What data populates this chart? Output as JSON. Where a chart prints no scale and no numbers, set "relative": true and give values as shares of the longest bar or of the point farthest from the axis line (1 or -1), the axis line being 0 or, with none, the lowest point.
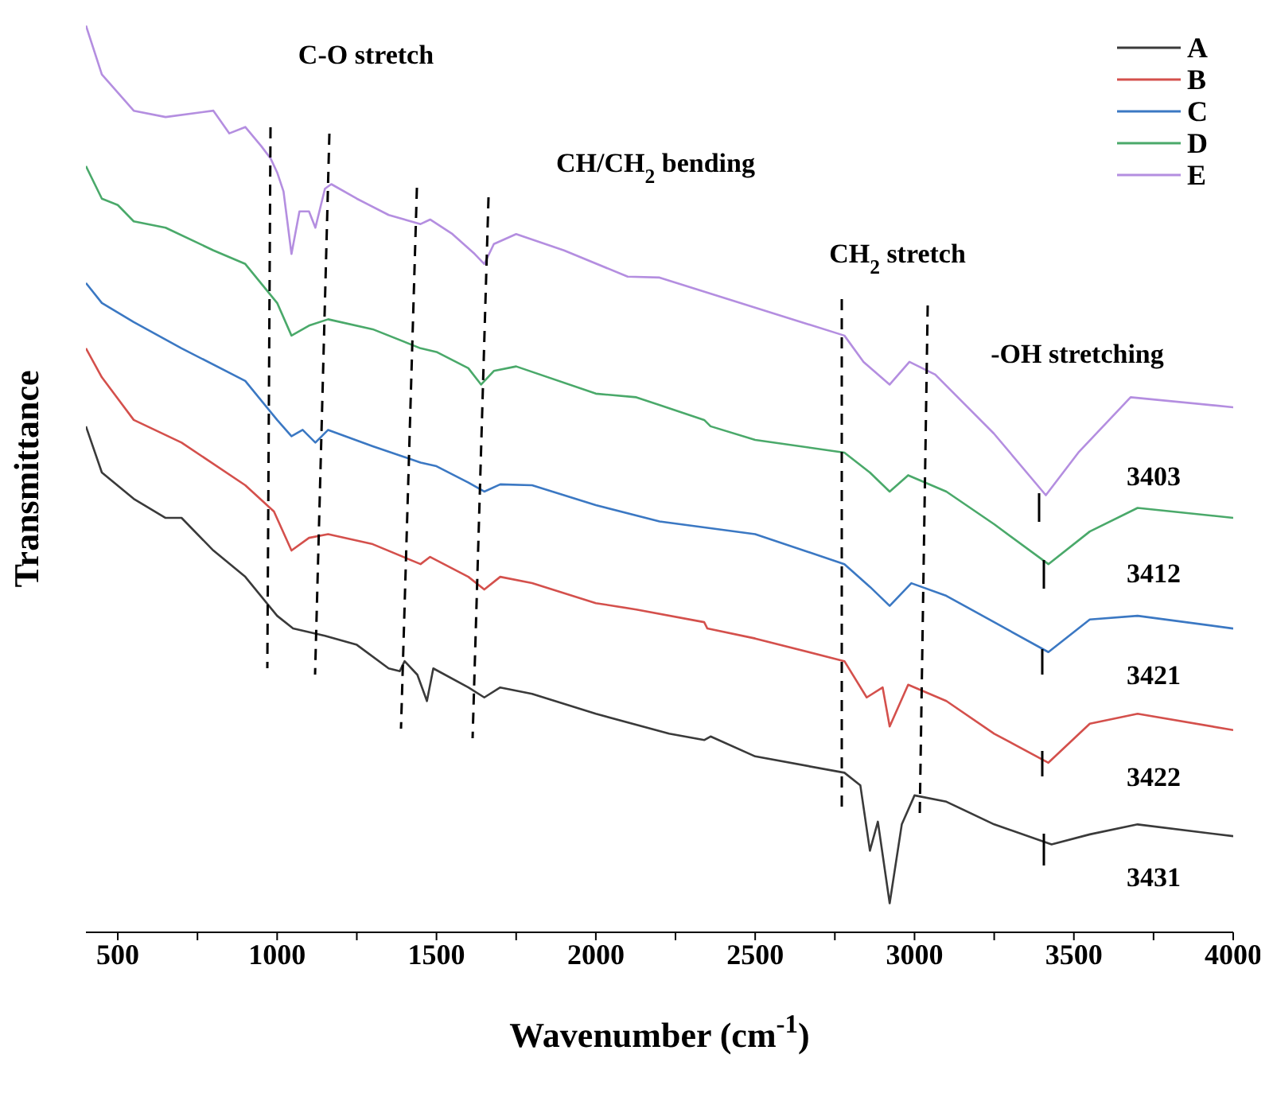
{
  "chart_data": {
    "type": "line",
    "relative": true,
    "xlabel": "Wavenumber (cm$^{-1}$)",
    "ylabel": "Transmittance",
    "xlim": [
      400,
      4000
    ],
    "xticks": [
      500,
      {
        "value": 750,
        "label": null
      },
      1000,
      {
        "value": 1250,
        "label": null
      },
      1500,
      {
        "value": 1750,
        "label": null
      },
      2000,
      {
        "value": 2250,
        "label": null
      },
      2500,
      {
        "value": 2750,
        "label": null
      },
      3000,
      {
        "value": 3250,
        "label": null
      },
      3500,
      {
        "value": 3750,
        "label": null
      },
      4000
    ],
    "legend": "top right",
    "grid": false,
    "marker": "none",
    "line_style": "solid",
    "annotations": [
      "C-O stretch",
      "CH/CH$_{2}$ bending",
      "CH$_{2}$ stretch",
      "-OH stretching",
      "3403",
      "3412",
      "3421",
      "3422",
      "3431"
    ],
    "series": [
      {
        "name": "A",
        "color": "#3a3a3a",
        "x": [
          400,
          450,
          550,
          650,
          700,
          800,
          900,
          1000,
          1050,
          1150,
          1250,
          1350,
          1385,
          1400,
          1440,
          1470,
          1490,
          1600,
          1650,
          1700,
          1800,
          2000,
          2230,
          2340,
          2360,
          2500,
          2780,
          2830,
          2860,
          2885,
          2922,
          2960,
          3000,
          3100,
          3250,
          3430,
          3550,
          3700,
          4000
        ],
        "values": [
          0.558,
          0.507,
          0.478,
          0.457,
          0.457,
          0.421,
          0.392,
          0.349,
          0.335,
          0.327,
          0.317,
          0.291,
          0.288,
          0.299,
          0.284,
          0.255,
          0.291,
          0.27,
          0.259,
          0.27,
          0.263,
          0.241,
          0.219,
          0.212,
          0.216,
          0.194,
          0.176,
          0.162,
          0.09,
          0.122,
          0.032,
          0.119,
          0.151,
          0.144,
          0.119,
          0.097,
          0.108,
          0.119,
          0.106
        ]
      },
      {
        "name": "B",
        "color": "#d4504c",
        "x": [
          400,
          450,
          550,
          700,
          900,
          990,
          1045,
          1100,
          1160,
          1300,
          1450,
          1480,
          1600,
          1650,
          1700,
          1800,
          2000,
          2127,
          2340,
          2350,
          2500,
          2780,
          2850,
          2900,
          2922,
          2980,
          3100,
          3250,
          3420,
          3550,
          3700,
          4000
        ],
        "values": [
          0.644,
          0.612,
          0.565,
          0.54,
          0.493,
          0.464,
          0.421,
          0.435,
          0.439,
          0.428,
          0.406,
          0.414,
          0.392,
          0.378,
          0.392,
          0.385,
          0.363,
          0.356,
          0.342,
          0.335,
          0.324,
          0.299,
          0.259,
          0.27,
          0.227,
          0.273,
          0.255,
          0.219,
          0.187,
          0.23,
          0.241,
          0.223
        ]
      },
      {
        "name": "C",
        "color": "#3b78c3",
        "x": [
          400,
          450,
          550,
          700,
          900,
          1000,
          1045,
          1080,
          1120,
          1160,
          1300,
          1450,
          1500,
          1600,
          1650,
          1700,
          1800,
          2000,
          2200,
          2500,
          2780,
          2860,
          2922,
          2990,
          3100,
          3250,
          3420,
          3550,
          3700,
          4000
        ],
        "values": [
          0.716,
          0.694,
          0.673,
          0.644,
          0.608,
          0.565,
          0.547,
          0.554,
          0.54,
          0.554,
          0.536,
          0.518,
          0.514,
          0.496,
          0.486,
          0.494,
          0.493,
          0.471,
          0.453,
          0.439,
          0.406,
          0.381,
          0.36,
          0.385,
          0.371,
          0.342,
          0.309,
          0.345,
          0.349,
          0.335
        ]
      },
      {
        "name": "D",
        "color": "#4aa96a",
        "x": [
          400,
          450,
          500,
          550,
          650,
          800,
          900,
          1000,
          1045,
          1100,
          1160,
          1300,
          1450,
          1500,
          1600,
          1640,
          1680,
          1750,
          2000,
          2127,
          2340,
          2360,
          2500,
          2780,
          2860,
          2922,
          2980,
          3100,
          3250,
          3420,
          3550,
          3700,
          4000
        ],
        "values": [
          0.845,
          0.809,
          0.802,
          0.784,
          0.777,
          0.752,
          0.737,
          0.694,
          0.658,
          0.669,
          0.676,
          0.665,
          0.644,
          0.64,
          0.622,
          0.604,
          0.619,
          0.624,
          0.594,
          0.59,
          0.565,
          0.558,
          0.543,
          0.529,
          0.507,
          0.486,
          0.504,
          0.486,
          0.45,
          0.406,
          0.442,
          0.468,
          0.457
        ]
      },
      {
        "name": "E",
        "color": "#b48ee0",
        "x": [
          400,
          450,
          550,
          650,
          800,
          850,
          900,
          950,
          980,
          1000,
          1020,
          1045,
          1070,
          1100,
          1120,
          1150,
          1170,
          1250,
          1350,
          1450,
          1480,
          1550,
          1620,
          1650,
          1680,
          1750,
          1900,
          2100,
          2200,
          2780,
          2840,
          2922,
          2984,
          3065,
          3249,
          3412,
          3514,
          3678,
          4000
        ],
        "values": [
          1.0,
          0.946,
          0.906,
          0.899,
          0.906,
          0.881,
          0.888,
          0.867,
          0.853,
          0.838,
          0.817,
          0.748,
          0.795,
          0.795,
          0.777,
          0.82,
          0.825,
          0.809,
          0.791,
          0.781,
          0.786,
          0.77,
          0.748,
          0.737,
          0.759,
          0.77,
          0.752,
          0.723,
          0.722,
          0.658,
          0.629,
          0.604,
          0.629,
          0.615,
          0.55,
          0.482,
          0.529,
          0.59,
          0.579
        ]
      }
    ]
  }
}
